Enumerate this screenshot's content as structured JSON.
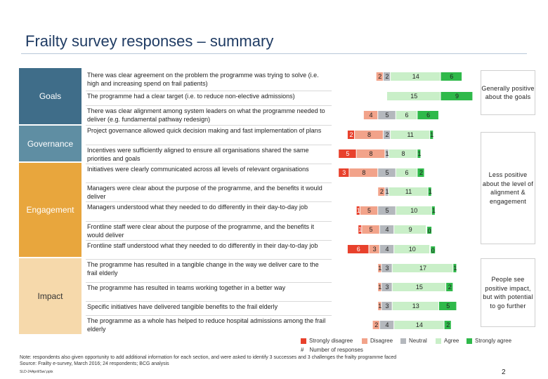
{
  "title": "Frailty survey responses – summary",
  "categories": [
    {
      "label": "Goals",
      "color": "#3f6d89"
    },
    {
      "label": "Governance",
      "color": "#5f8ea3"
    },
    {
      "label": "Engagement",
      "color": "#e8a63d"
    },
    {
      "label": "Impact",
      "color": "#f6d9ab"
    }
  ],
  "callouts": {
    "goals": "Generally positive about the goals",
    "governance": "Less positive about the level of alignment & engagement",
    "impact": "People see positive impact, but with potential to go further"
  },
  "legend": {
    "strongly_disagree": "Strongly disagree",
    "disagree": "Disagree",
    "neutral": "Neutral",
    "agree": "Agree",
    "strongly_agree": "Strongly agree",
    "number_marker": "#",
    "number_text": "Number of responses"
  },
  "colors": {
    "strongly_disagree": "#e8412c",
    "disagree": "#f2a38a",
    "neutral": "#b4b8bd",
    "agree": "#c9efc8",
    "strongly_agree": "#2fb94a"
  },
  "notes": {
    "note1": "Note: respondents also given opportunity to add additional information for each section, and were asked to identify 3 successes and 3 challenges the frailty programme faced",
    "source": "Source: Frailty e-survey, March 2016; 24 respondents; BCG analysis",
    "ref": "SLD-24April/Sw/.pptx",
    "page": "2"
  },
  "chart_data": {
    "type": "bar",
    "stacked": true,
    "diverging": true,
    "title": "Frailty survey responses – summary",
    "series": [
      {
        "name": "Strongly disagree",
        "values": [
          0,
          0,
          0,
          2,
          5,
          3,
          0,
          1,
          1,
          6,
          0,
          0,
          0,
          0
        ]
      },
      {
        "name": "Disagree",
        "values": [
          2,
          0,
          4,
          8,
          8,
          8,
          2,
          5,
          5,
          3,
          1,
          1,
          1,
          2
        ]
      },
      {
        "name": "Neutral",
        "values": [
          2,
          0,
          5,
          2,
          1,
          5,
          1,
          5,
          4,
          4,
          3,
          3,
          3,
          4
        ]
      },
      {
        "name": "Agree",
        "values": [
          14,
          15,
          6,
          11,
          8,
          6,
          11,
          10,
          9,
          10,
          17,
          15,
          13,
          14
        ]
      },
      {
        "name": "Strongly agree",
        "values": [
          6,
          9,
          6,
          1,
          1,
          2,
          1,
          1,
          0,
          0,
          1,
          2,
          5,
          2
        ]
      }
    ],
    "questions": [
      "There was clear agreement on the problem the programme was trying to solve (i.e. high and increasing spend on frail patients)",
      "The programme had a clear target (i.e. to reduce non-elective admissions)",
      "There was clear alignment among system leaders on what the programme needed to deliver (e.g. fundamental pathway redesign)",
      "Project governance allowed quick decision making and fast implementation of plans",
      "Incentives were sufficiently aligned to ensure all organisations shared the same priorities and goals",
      "Initiatives were clearly communicated across all levels of relevant organisations",
      "Managers were clear about the purpose of the programme, and the benefits it would deliver",
      "Managers understood what they needed to do differently in their day-to-day job",
      "Frontline staff were clear about the purpose of the programme, and the benefits it would deliver",
      "Frontline staff understood what they needed to do differently in their day-to-day job",
      "The programme has resulted in a tangible change in the way we deliver care to the frail elderly",
      "The programme has resulted in teams working together in a better way",
      "Specific initiatives have delivered tangible benefits to the frail elderly",
      "The programme as a whole has helped to reduce hospital admissions among the frail elderly"
    ],
    "xlabel": "",
    "ylabel": ""
  }
}
